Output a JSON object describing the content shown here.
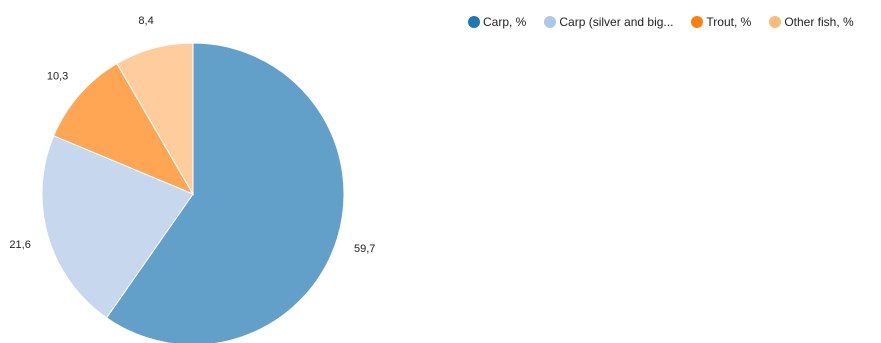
{
  "chart_data": {
    "type": "pie",
    "categories": [
      "Carp, %",
      "Carp (silver and big...",
      "Trout, %",
      "Other fish, %"
    ],
    "values": [
      59.7,
      21.6,
      10.3,
      8.4
    ],
    "value_labels": [
      "59,7",
      "21,6",
      "10,3",
      "8,4"
    ],
    "slice_colors": [
      "#62a0ca",
      "#c6d7ee",
      "#ffa655",
      "#ffcd9d"
    ],
    "legend_colors": [
      "#1f77b4",
      "#aec7e8",
      "#ff7f0e",
      "#ffbb78"
    ],
    "legend_position": "top-right"
  }
}
